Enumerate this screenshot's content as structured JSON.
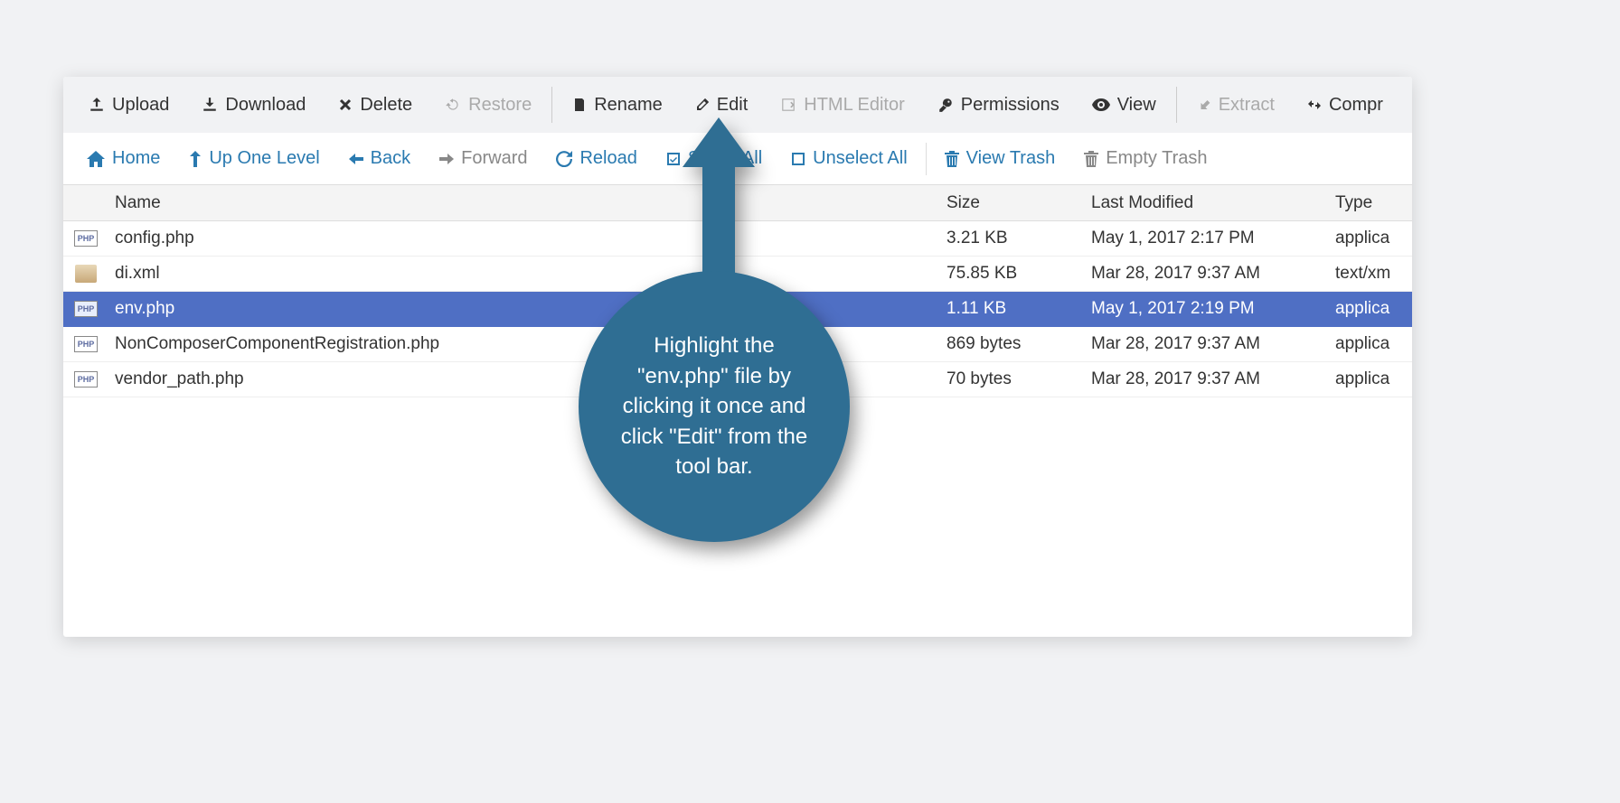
{
  "colors": {
    "page_bg": "#f1f2f4",
    "toolbar_bg": "#f1f2f4",
    "link": "#2a7ab0",
    "disabled": "#aaaaaa",
    "text": "#333333",
    "selected_bg": "#4f6fc4",
    "selected_text": "#ffffff",
    "callout_bg": "#2f6e93"
  },
  "toolbar": {
    "upload": "Upload",
    "download": "Download",
    "delete": "Delete",
    "restore": "Restore",
    "rename": "Rename",
    "edit": "Edit",
    "html_editor": "HTML Editor",
    "permissions": "Permissions",
    "view": "View",
    "extract": "Extract",
    "compress": "Compr"
  },
  "nav": {
    "home": "Home",
    "up": "Up One Level",
    "back": "Back",
    "forward": "Forward",
    "reload": "Reload",
    "select_all": "Select All",
    "unselect_all": "Unselect All",
    "view_trash": "View Trash",
    "empty_trash": "Empty Trash"
  },
  "table": {
    "headers": {
      "name": "Name",
      "size": "Size",
      "modified": "Last Modified",
      "type": "Type"
    },
    "rows": [
      {
        "icon": "php",
        "name": "config.php",
        "size": "3.21 KB",
        "modified": "May 1, 2017 2:17 PM",
        "type": "applica",
        "selected": false
      },
      {
        "icon": "xml",
        "name": "di.xml",
        "size": "75.85 KB",
        "modified": "Mar 28, 2017 9:37 AM",
        "type": "text/xm",
        "selected": false
      },
      {
        "icon": "php",
        "name": "env.php",
        "size": "1.11 KB",
        "modified": "May 1, 2017 2:19 PM",
        "type": "applica",
        "selected": true
      },
      {
        "icon": "php",
        "name": "NonComposerComponentRegistration.php",
        "size": "869 bytes",
        "modified": "Mar 28, 2017 9:37 AM",
        "type": "applica",
        "selected": false
      },
      {
        "icon": "php",
        "name": "vendor_path.php",
        "size": "70 bytes",
        "modified": "Mar 28, 2017 9:37 AM",
        "type": "applica",
        "selected": false
      }
    ]
  },
  "callout": {
    "text": "Highlight the \"env.php\" file by clicking it once and click \"Edit\" from the tool bar."
  }
}
